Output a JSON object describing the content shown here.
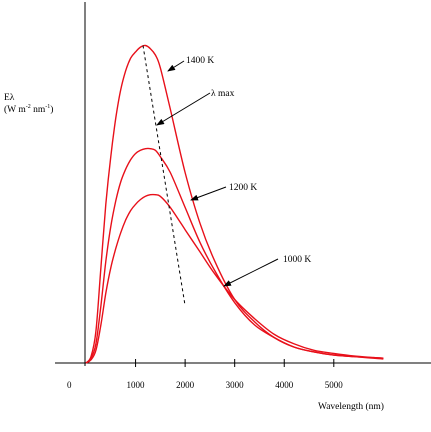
{
  "chart_data": {
    "type": "line",
    "title": "",
    "xlabel": "Wavelength (nm)",
    "ylabel_line1": "Eλ",
    "ylabel_line2": "(W m",
    "ylabel_sup1": "-2",
    "ylabel_mid": " nm",
    "ylabel_sup2": "-1",
    "ylabel_end": ")",
    "xlim": [
      0,
      6000
    ],
    "ylim": [
      0,
      100
    ],
    "grid": false,
    "x_tick_origin": "0",
    "x_ticks": [
      1000,
      2000,
      3000,
      4000,
      5000
    ],
    "x_tick_labels": [
      "1000",
      "2000",
      "3000",
      "4000",
      "5000"
    ],
    "colors": {
      "curve": "#e8101a",
      "axis": "#000000",
      "lambda_max_line": "#000000"
    },
    "series": [
      {
        "name": "1400 K",
        "x": [
          0,
          100,
          200,
          300,
          400,
          500,
          600,
          700,
          800,
          900,
          1000,
          1100,
          1200,
          1300,
          1400,
          1500,
          1700,
          2000,
          2300,
          2600,
          3000,
          3400,
          3800,
          4200,
          4600,
          5000,
          5400,
          5800,
          6000
        ],
        "y": [
          0,
          2,
          10,
          30,
          50,
          65,
          77,
          86,
          92,
          96,
          98,
          99.5,
          100,
          99,
          97,
          93,
          80,
          60,
          44,
          32,
          20,
          13,
          8,
          5,
          3.5,
          2.5,
          2,
          1.7,
          1.5
        ]
      },
      {
        "name": "1200 K",
        "x": [
          0,
          100,
          200,
          300,
          400,
          500,
          600,
          700,
          800,
          900,
          1000,
          1100,
          1200,
          1300,
          1400,
          1500,
          1700,
          2000,
          2300,
          2600,
          3000,
          3400,
          3800,
          4200,
          4600,
          5000,
          5400,
          5800,
          6000
        ],
        "y": [
          0,
          1.5,
          6,
          18,
          32,
          43,
          51,
          57,
          61,
          64,
          66,
          67,
          67.5,
          67.5,
          67,
          65,
          60,
          49,
          38,
          29,
          19,
          12,
          8,
          5,
          3.5,
          2.5,
          2,
          1.5,
          1.3
        ]
      },
      {
        "name": "1000 K",
        "x": [
          0,
          100,
          200,
          300,
          400,
          500,
          600,
          700,
          800,
          900,
          1000,
          1100,
          1200,
          1300,
          1400,
          1500,
          1700,
          2000,
          2300,
          2600,
          3000,
          3400,
          3800,
          4200,
          4600,
          5000,
          5400,
          5800,
          6000
        ],
        "y": [
          0,
          1,
          4,
          12,
          22,
          30,
          36,
          41,
          45,
          48,
          50,
          51.5,
          52.5,
          53,
          53,
          52.5,
          49,
          42,
          35,
          28,
          20,
          14,
          9,
          6,
          4,
          3,
          2.2,
          1.7,
          1.5
        ]
      }
    ],
    "lambda_max_line": {
      "label": "λ max",
      "x": [
        1150,
        2000
      ],
      "y": [
        100,
        18
      ]
    },
    "annotations": [
      {
        "text": "1400 K",
        "target": "1400 K"
      },
      {
        "text": "λ max",
        "target": "λ max line"
      },
      {
        "text": "1200 K",
        "target": "1200 K"
      },
      {
        "text": "1000 K",
        "target": "1000 K"
      }
    ]
  }
}
